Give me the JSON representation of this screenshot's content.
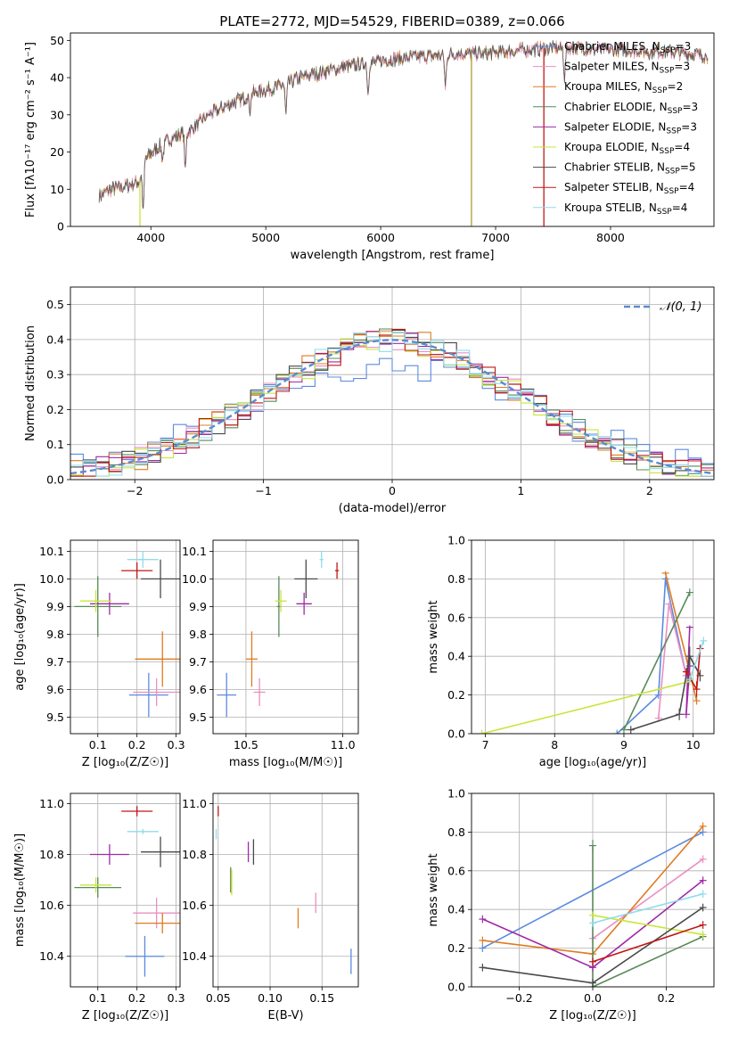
{
  "figure_title": "PLATE=2772, MJD=54529, FIBERID=0389, z=0.066",
  "colors": {
    "Chabrier MILES": "#5b8be0",
    "Salpeter MILES": "#ea8fc2",
    "Kroupa MILES": "#e07b20",
    "Chabrier ELODIE": "#5a8a5a",
    "Salpeter ELODIE": "#a02aa8",
    "Kroupa ELODIE": "#c8e63c",
    "Chabrier STELIB": "#4a4a4a",
    "Salpeter STELIB": "#c01818",
    "Kroupa STELIB": "#8fdcec"
  },
  "chart_data": [
    {
      "id": "spectrum",
      "type": "line",
      "title": "PLATE=2772, MJD=54529, FIBERID=0389, z=0.066",
      "xlabel": "wavelength [Angstrom, rest frame]",
      "ylabel": "Flux [fλ10⁻¹⁷ erg cm⁻² s⁻¹ A⁻¹]",
      "xlim": [
        3300,
        8900
      ],
      "ylim": [
        0,
        52
      ],
      "xticks": [
        4000,
        5000,
        6000,
        7000,
        8000
      ],
      "yticks": [
        0,
        10,
        20,
        30,
        40,
        50
      ],
      "grid": false,
      "legend_position": "right",
      "continuum_x": [
        3550,
        3650,
        3800,
        3900,
        3950,
        4050,
        4200,
        4350,
        4500,
        4700,
        4900,
        5100,
        5300,
        5500,
        5700,
        5900,
        6100,
        6300,
        6500,
        6700,
        6900,
        7100,
        7300,
        7500,
        7700,
        7900,
        8100,
        8300,
        8500,
        8800
      ],
      "continuum_y": [
        8,
        10,
        11,
        12,
        18,
        21,
        24,
        26,
        30,
        33,
        36,
        37.5,
        40,
        41.5,
        43,
        44,
        45,
        45.5,
        46,
        46.5,
        46.5,
        47,
        47.5,
        48,
        48,
        47.5,
        47.5,
        47,
        47,
        46
      ],
      "absorption_features": [
        {
          "x": 3933,
          "y": 4
        },
        {
          "x": 4102,
          "y": 18
        },
        {
          "x": 4300,
          "y": 15
        },
        {
          "x": 4861,
          "y": 31
        },
        {
          "x": 5175,
          "y": 30
        },
        {
          "x": 5890,
          "y": 36
        },
        {
          "x": 6563,
          "y": 37
        },
        {
          "x": 7600,
          "y": 40
        }
      ],
      "drop_lines": [
        3905,
        6790,
        7420
      ],
      "series": [
        {
          "name": "Chabrier MILES, N_SSP=3",
          "label": "Chabrier MILES, N",
          "sub": "SSP",
          "value": "=3"
        },
        {
          "name": "Salpeter MILES, N_SSP=3",
          "label": "Salpeter MILES, N",
          "sub": "SSP",
          "value": "=3"
        },
        {
          "name": "Kroupa MILES, N_SSP=2",
          "label": "Kroupa MILES, N",
          "sub": "SSP",
          "value": "=2"
        },
        {
          "name": "Chabrier ELODIE, N_SSP=3",
          "label": "Chabrier ELODIE, N",
          "sub": "SSP",
          "value": "=3"
        },
        {
          "name": "Salpeter ELODIE, N_SSP=3",
          "label": "Salpeter ELODIE, N",
          "sub": "SSP",
          "value": "=3"
        },
        {
          "name": "Kroupa ELODIE, N_SSP=4",
          "label": "Kroupa ELODIE, N",
          "sub": "SSP",
          "value": "=4"
        },
        {
          "name": "Chabrier STELIB, N_SSP=5",
          "label": "Chabrier STELIB, N",
          "sub": "SSP",
          "value": "=5"
        },
        {
          "name": "Salpeter STELIB, N_SSP=4",
          "label": "Salpeter STELIB, N",
          "sub": "SSP",
          "value": "=4"
        },
        {
          "name": "Kroupa STELIB, N_SSP=4",
          "label": "Kroupa STELIB, N",
          "sub": "SSP",
          "value": "=4"
        }
      ]
    },
    {
      "id": "residuals",
      "type": "histogram",
      "xlabel": "(data-model)/error",
      "ylabel": "Normed distribution",
      "xlim": [
        -2.5,
        2.5
      ],
      "ylim": [
        0,
        0.55
      ],
      "xticks": [
        -2,
        -1,
        0,
        1,
        2
      ],
      "xtick_labels": [
        "−2",
        "−1",
        "0",
        "1",
        "2"
      ],
      "yticks": [
        0,
        0.1,
        0.2,
        0.3,
        0.4,
        0.5
      ],
      "ytick_labels": [
        "0.0",
        "0.1",
        "0.2",
        "0.3",
        "0.4",
        "0.5"
      ],
      "grid": true,
      "bin_width": 0.1,
      "legend_position": "top-right",
      "legend_label": "𝒩(0, 1)",
      "gaussian": {
        "mean": 0,
        "sigma": 1
      }
    },
    {
      "id": "age_vs_Z",
      "type": "scatter",
      "xlabel": "Z [log₁₀(Z/Z☉)]",
      "ylabel": "age  [log₁₀(age/yr)]",
      "xlim": [
        0.03,
        0.31
      ],
      "ylim": [
        9.44,
        10.14
      ],
      "xticks": [
        0.1,
        0.2,
        0.3
      ],
      "xtick_labels": [
        "0.1",
        "0.2",
        "0.3"
      ],
      "yticks": [
        9.5,
        9.6,
        9.7,
        9.8,
        9.9,
        10.0,
        10.1
      ],
      "ytick_labels": [
        "9.5",
        "9.6",
        "9.7",
        "9.8",
        "9.9",
        "10.0",
        "10.1"
      ],
      "grid": true,
      "points": [
        {
          "series": "Chabrier MILES",
          "x": 0.23,
          "y": 9.58,
          "xerr": 0.05,
          "yerr": 0.08
        },
        {
          "series": "Salpeter MILES",
          "x": 0.25,
          "y": 9.59,
          "xerr": 0.06,
          "yerr": 0.05
        },
        {
          "series": "Kroupa MILES",
          "x": 0.265,
          "y": 9.71,
          "xerr": 0.07,
          "yerr": 0.1
        },
        {
          "series": "Chabrier ELODIE",
          "x": 0.1,
          "y": 9.9,
          "xerr": 0.06,
          "yerr": 0.11
        },
        {
          "series": "Salpeter ELODIE",
          "x": 0.13,
          "y": 9.91,
          "xerr": 0.05,
          "yerr": 0.04
        },
        {
          "series": "Kroupa ELODIE",
          "x": 0.095,
          "y": 9.92,
          "xerr": 0.04,
          "yerr": 0.04
        },
        {
          "series": "Chabrier STELIB",
          "x": 0.26,
          "y": 10.0,
          "xerr": 0.05,
          "yerr": 0.07
        },
        {
          "series": "Salpeter STELIB",
          "x": 0.2,
          "y": 10.03,
          "xerr": 0.04,
          "yerr": 0.03
        },
        {
          "series": "Kroupa STELIB",
          "x": 0.215,
          "y": 10.07,
          "xerr": 0.04,
          "yerr": 0.03
        }
      ]
    },
    {
      "id": "age_vs_mass",
      "type": "scatter",
      "xlabel": "mass [log₁₀(M/M☉)]",
      "ylabel": "",
      "xlim": [
        10.33,
        11.08
      ],
      "ylim": [
        9.44,
        10.14
      ],
      "xticks": [
        10.5,
        11.0
      ],
      "xtick_labels": [
        "10.5",
        "11.0"
      ],
      "yticks": [
        9.5,
        9.6,
        9.7,
        9.8,
        9.9,
        10.0,
        10.1
      ],
      "ytick_labels": [
        "9.5",
        "9.6",
        "9.7",
        "9.8",
        "9.9",
        "10.0",
        "10.1"
      ],
      "grid": true,
      "points": [
        {
          "series": "Chabrier MILES",
          "x": 10.4,
          "y": 9.58,
          "xerr": 0.05,
          "yerr": 0.08
        },
        {
          "series": "Salpeter MILES",
          "x": 10.57,
          "y": 9.59,
          "xerr": 0.03,
          "yerr": 0.05
        },
        {
          "series": "Kroupa MILES",
          "x": 10.53,
          "y": 9.71,
          "xerr": 0.03,
          "yerr": 0.1
        },
        {
          "series": "Chabrier ELODIE",
          "x": 10.67,
          "y": 9.9,
          "xerr": 0.01,
          "yerr": 0.11
        },
        {
          "series": "Salpeter ELODIE",
          "x": 10.8,
          "y": 9.91,
          "xerr": 0.04,
          "yerr": 0.04
        },
        {
          "series": "Kroupa ELODIE",
          "x": 10.68,
          "y": 9.92,
          "xerr": 0.03,
          "yerr": 0.04
        },
        {
          "series": "Chabrier STELIB",
          "x": 10.81,
          "y": 10.0,
          "xerr": 0.06,
          "yerr": 0.07
        },
        {
          "series": "Salpeter STELIB",
          "x": 10.97,
          "y": 10.03,
          "xerr": 0.01,
          "yerr": 0.03
        },
        {
          "series": "Kroupa STELIB",
          "x": 10.89,
          "y": 10.07,
          "xerr": 0.01,
          "yerr": 0.03
        }
      ]
    },
    {
      "id": "weight_vs_age",
      "type": "line",
      "xlabel": "age  [log₁₀(age/yr)]",
      "ylabel": "mass weight",
      "xlim": [
        6.8,
        10.3
      ],
      "ylim": [
        0,
        1
      ],
      "xticks": [
        7,
        8,
        9,
        10
      ],
      "xtick_labels": [
        "7",
        "8",
        "9",
        "10"
      ],
      "yticks": [
        0,
        0.2,
        0.4,
        0.6,
        0.8,
        1.0
      ],
      "ytick_labels": [
        "0.0",
        "0.2",
        "0.4",
        "0.6",
        "0.8",
        "1.0"
      ],
      "grid": true,
      "series": [
        {
          "series": "Chabrier MILES",
          "x": [
            8.9,
            9.5,
            9.6,
            9.9
          ],
          "y": [
            0.0,
            0.2,
            0.8,
            0.3
          ],
          "yerr": [
            0,
            0.02,
            0.01,
            0.02
          ]
        },
        {
          "series": "Salpeter MILES",
          "x": [
            9.5,
            9.65,
            9.9
          ],
          "y": [
            0.08,
            0.67,
            0.3
          ],
          "yerr": [
            0.02,
            0.01,
            0.02
          ]
        },
        {
          "series": "Kroupa MILES",
          "x": [
            9.6,
            10.05
          ],
          "y": [
            0.83,
            0.17
          ],
          "yerr": [
            0.01,
            0.02
          ]
        },
        {
          "series": "Chabrier ELODIE",
          "x": [
            9.0,
            9.95
          ],
          "y": [
            0.02,
            0.73
          ],
          "yerr": [
            0.02,
            0.02
          ]
        },
        {
          "series": "Salpeter ELODIE",
          "x": [
            9.95,
            9.9,
            9.95
          ],
          "y": [
            0.55,
            0.1,
            0.35
          ],
          "yerr": [
            0.01,
            0.02,
            0.02
          ]
        },
        {
          "series": "Kroupa ELODIE",
          "x": [
            6.95,
            9.95
          ],
          "y": [
            0.0,
            0.27
          ],
          "yerr": [
            0,
            0.02
          ]
        },
        {
          "series": "Chabrier STELIB",
          "x": [
            9.1,
            9.8,
            9.95,
            10.1
          ],
          "y": [
            0.02,
            0.1,
            0.4,
            0.3
          ],
          "yerr": [
            0,
            0.03,
            0.05,
            0.03
          ]
        },
        {
          "series": "Salpeter STELIB",
          "x": [
            9.9,
            10.05,
            10.1
          ],
          "y": [
            0.32,
            0.23,
            0.44
          ],
          "yerr": [
            0.02,
            0.04,
            0.02
          ]
        },
        {
          "series": "Kroupa STELIB",
          "x": [
            9.95,
            10.15
          ],
          "y": [
            0.28,
            0.48
          ],
          "yerr": [
            0.02,
            0.02
          ]
        }
      ]
    },
    {
      "id": "mass_vs_Z",
      "type": "scatter",
      "xlabel": "Z [log₁₀(Z/Z☉)]",
      "ylabel": "mass [log₁₀(M/M☉)]",
      "xlim": [
        0.03,
        0.31
      ],
      "ylim": [
        10.28,
        11.04
      ],
      "xticks": [
        0.1,
        0.2,
        0.3
      ],
      "xtick_labels": [
        "0.1",
        "0.2",
        "0.3"
      ],
      "yticks": [
        10.4,
        10.6,
        10.8,
        11.0
      ],
      "ytick_labels": [
        "10.4",
        "10.6",
        "10.8",
        "11.0"
      ],
      "grid": true,
      "points": [
        {
          "series": "Chabrier MILES",
          "x": 0.22,
          "y": 10.4,
          "xerr": 0.05,
          "yerr": 0.08
        },
        {
          "series": "Salpeter MILES",
          "x": 0.25,
          "y": 10.57,
          "xerr": 0.06,
          "yerr": 0.06
        },
        {
          "series": "Kroupa MILES",
          "x": 0.265,
          "y": 10.53,
          "xerr": 0.07,
          "yerr": 0.04
        },
        {
          "series": "Chabrier ELODIE",
          "x": 0.1,
          "y": 10.67,
          "xerr": 0.06,
          "yerr": 0.04
        },
        {
          "series": "Salpeter ELODIE",
          "x": 0.13,
          "y": 10.8,
          "xerr": 0.05,
          "yerr": 0.04
        },
        {
          "series": "Kroupa ELODIE",
          "x": 0.095,
          "y": 10.68,
          "xerr": 0.04,
          "yerr": 0.03
        },
        {
          "series": "Chabrier STELIB",
          "x": 0.26,
          "y": 10.81,
          "xerr": 0.05,
          "yerr": 0.06
        },
        {
          "series": "Salpeter STELIB",
          "x": 0.2,
          "y": 10.97,
          "xerr": 0.04,
          "yerr": 0.02
        },
        {
          "series": "Kroupa STELIB",
          "x": 0.215,
          "y": 10.89,
          "xerr": 0.04,
          "yerr": 0.01
        }
      ]
    },
    {
      "id": "mass_vs_ebv",
      "type": "scatter",
      "xlabel": "E(B-V)",
      "ylabel": "",
      "xlim": [
        0.045,
        0.185
      ],
      "ylim": [
        10.28,
        11.04
      ],
      "xticks": [
        0.05,
        0.1,
        0.15
      ],
      "xtick_labels": [
        "0.05",
        "0.10",
        "0.15"
      ],
      "yticks": [
        10.4,
        10.6,
        10.8,
        11.0
      ],
      "ytick_labels": [
        "10.4",
        "10.6",
        "10.8",
        "11.0"
      ],
      "grid": true,
      "points": [
        {
          "series": "Chabrier MILES",
          "x": 0.178,
          "y": 10.38,
          "yerr": 0.05
        },
        {
          "series": "Salpeter MILES",
          "x": 0.144,
          "y": 10.61,
          "yerr": 0.04
        },
        {
          "series": "Kroupa MILES",
          "x": 0.127,
          "y": 10.55,
          "yerr": 0.04
        },
        {
          "series": "Chabrier ELODIE",
          "x": 0.062,
          "y": 10.7,
          "yerr": 0.05
        },
        {
          "series": "Salpeter ELODIE",
          "x": 0.079,
          "y": 10.81,
          "yerr": 0.04
        },
        {
          "series": "Kroupa ELODIE",
          "x": 0.063,
          "y": 10.69,
          "yerr": 0.05
        },
        {
          "series": "Chabrier STELIB",
          "x": 0.084,
          "y": 10.81,
          "yerr": 0.05
        },
        {
          "series": "Salpeter STELIB",
          "x": 0.05,
          "y": 10.97,
          "yerr": 0.02
        },
        {
          "series": "Kroupa STELIB",
          "x": 0.048,
          "y": 10.88,
          "yerr": 0.02
        }
      ]
    },
    {
      "id": "weight_vs_Z",
      "type": "line",
      "xlabel": "Z [log₁₀(Z/Z☉)]",
      "ylabel": "mass weight",
      "xlim": [
        -0.33,
        0.33
      ],
      "ylim": [
        0,
        1
      ],
      "xticks": [
        -0.2,
        0.0,
        0.2
      ],
      "xtick_labels": [
        "−0.2",
        "0.0",
        "0.2"
      ],
      "yticks": [
        0,
        0.2,
        0.4,
        0.6,
        0.8,
        1.0
      ],
      "ytick_labels": [
        "0.0",
        "0.2",
        "0.4",
        "0.6",
        "0.8",
        "1.0"
      ],
      "grid": true,
      "series": [
        {
          "series": "Chabrier MILES",
          "x": [
            -0.3,
            0.3
          ],
          "y": [
            0.2,
            0.8
          ],
          "yerr": [
            0.02,
            0.02
          ]
        },
        {
          "series": "Salpeter MILES",
          "x": [
            0.0,
            0.3
          ],
          "y": [
            0.25,
            0.66
          ],
          "yerr": [
            0.02,
            0.02
          ]
        },
        {
          "series": "Kroupa MILES",
          "x": [
            -0.3,
            0.0,
            0.3
          ],
          "y": [
            0.24,
            0.17,
            0.83
          ],
          "yerr": [
            0.02,
            0.02,
            0.02
          ]
        },
        {
          "series": "Chabrier ELODIE",
          "x": [
            0.0,
            0.0,
            0.3
          ],
          "y": [
            0.73,
            0.0,
            0.26
          ],
          "yerr": [
            0.03,
            0.02,
            0.02
          ]
        },
        {
          "series": "Salpeter ELODIE",
          "x": [
            -0.3,
            0.0,
            0.3
          ],
          "y": [
            0.35,
            0.1,
            0.55
          ],
          "yerr": [
            0.02,
            0.02,
            0.02
          ]
        },
        {
          "series": "Kroupa ELODIE",
          "x": [
            0.0,
            0.3
          ],
          "y": [
            0.37,
            0.27
          ],
          "yerr": [
            0.02,
            0.02
          ]
        },
        {
          "series": "Chabrier STELIB",
          "x": [
            -0.3,
            0.0,
            0.3
          ],
          "y": [
            0.1,
            0.02,
            0.41
          ],
          "yerr": [
            0.02,
            0.02,
            0.02
          ]
        },
        {
          "series": "Salpeter STELIB",
          "x": [
            0.0,
            0.3
          ],
          "y": [
            0.13,
            0.32
          ],
          "yerr": [
            0.02,
            0.02
          ]
        },
        {
          "series": "Kroupa STELIB",
          "x": [
            0.0,
            0.3
          ],
          "y": [
            0.33,
            0.48
          ],
          "yerr": [
            0.02,
            0.02
          ]
        }
      ]
    }
  ]
}
